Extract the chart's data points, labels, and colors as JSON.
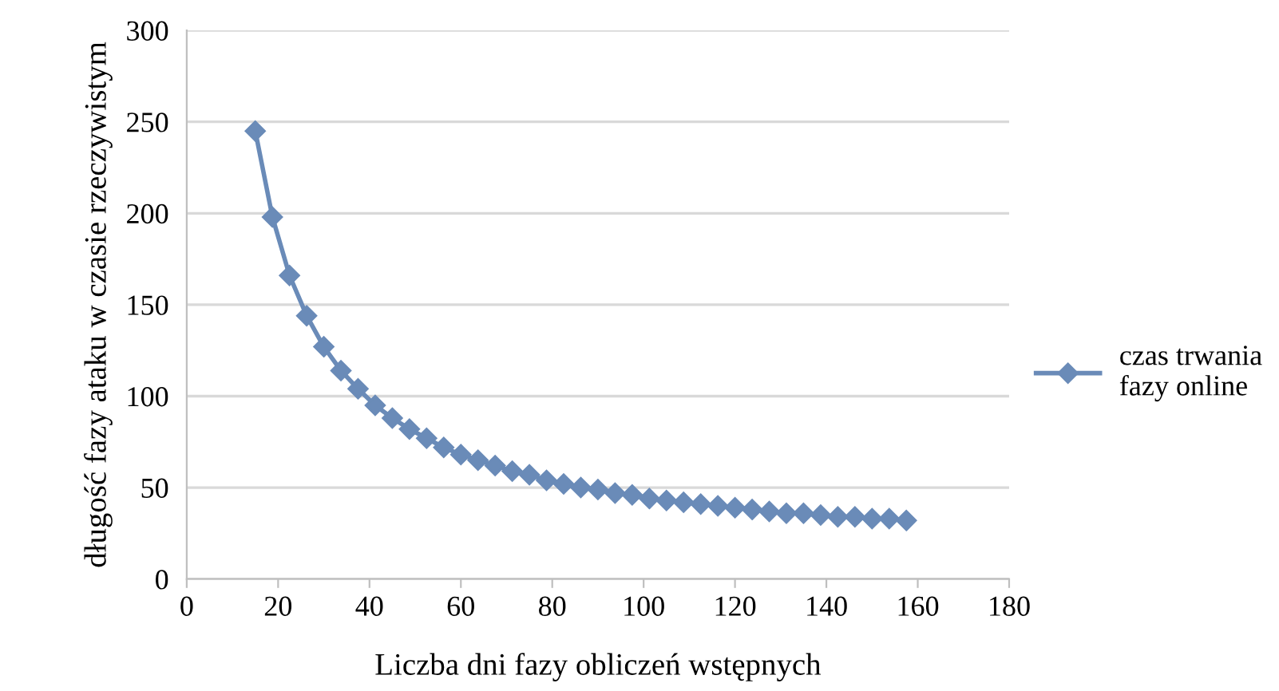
{
  "chart_data": {
    "type": "line",
    "xlabel": "Liczba dni fazy obliczeń wstępnych",
    "ylabel": "długość fazy ataku w czasie rzeczywistym",
    "xlim": [
      0,
      180
    ],
    "xticks": [
      0,
      20,
      40,
      60,
      80,
      100,
      120,
      140,
      160,
      180
    ],
    "ylim": [
      0,
      300
    ],
    "yticks": [
      0,
      50,
      100,
      150,
      200,
      250,
      300
    ],
    "grid": "y",
    "legend": "right",
    "marker": "diamond",
    "line_style": "solid",
    "series": [
      {
        "name": "czas trwania fazy online",
        "color": "#6a8bb8",
        "x": [
          15,
          18.75,
          22.5,
          26.25,
          30,
          33.75,
          37.5,
          41.25,
          45,
          48.75,
          52.5,
          56.25,
          60,
          63.75,
          67.5,
          71.25,
          75,
          78.75,
          82.5,
          86.25,
          90,
          93.75,
          97.5,
          101.25,
          105,
          108.75,
          112.5,
          116.25,
          120,
          123.75,
          127.5,
          131.25,
          135,
          138.75,
          142.5,
          146.25,
          150,
          153.75,
          157.5
        ],
        "values": [
          245,
          198,
          166,
          144,
          127,
          114,
          104,
          95,
          88,
          82,
          77,
          72,
          68,
          65,
          62,
          59,
          57,
          54,
          52,
          50,
          49,
          47,
          46,
          44,
          43,
          42,
          41,
          40,
          39,
          38,
          37,
          36,
          36,
          35,
          34,
          34,
          33,
          33,
          32
        ]
      }
    ]
  }
}
